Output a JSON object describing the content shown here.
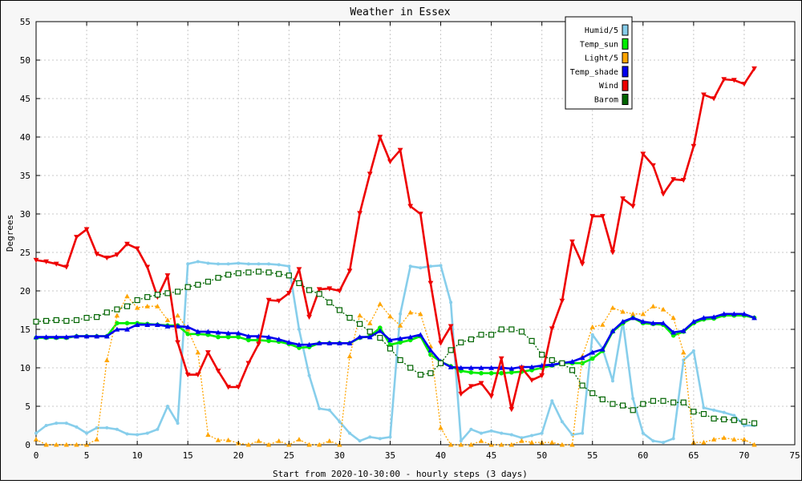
{
  "chart_data": {
    "type": "line",
    "title": "Weather in Essex",
    "xlabel": "Start from 2020-10-30:00 - hourly steps (3 days)",
    "ylabel": "Degrees",
    "xlim": [
      0,
      75
    ],
    "ylim": [
      0,
      55
    ],
    "xticks": [
      0,
      5,
      10,
      15,
      20,
      25,
      30,
      35,
      40,
      45,
      50,
      55,
      60,
      65,
      70,
      75
    ],
    "yticks": [
      0,
      5,
      10,
      15,
      20,
      25,
      30,
      35,
      40,
      45,
      50,
      55
    ],
    "grid": true,
    "legend_position": "top-right",
    "series": [
      {
        "name": "Humid/5",
        "color": "#87ceeb",
        "style": "thick-solid",
        "marker": "circle-small",
        "values": [
          1.5,
          2.5,
          2.8,
          2.8,
          2.3,
          1.5,
          2.2,
          2.2,
          2.0,
          1.4,
          1.3,
          1.5,
          2.0,
          5.0,
          2.8,
          23.5,
          23.8,
          23.6,
          23.5,
          23.5,
          23.6,
          23.5,
          23.5,
          23.5,
          23.4,
          23.2,
          15.0,
          9.0,
          4.7,
          4.5,
          3.0,
          1.5,
          0.5,
          1.0,
          0.8,
          1.0,
          17.0,
          23.2,
          23.0,
          23.2,
          23.3,
          18.5,
          0.5,
          2.0,
          1.5,
          1.8,
          1.5,
          1.3,
          0.9,
          1.2,
          1.5,
          5.7,
          3.0,
          1.3,
          1.5,
          14.3,
          12.5,
          8.3,
          16.0,
          6.0,
          1.5,
          0.5,
          0.3,
          0.8,
          11.0,
          12.2,
          4.8,
          4.5,
          4.2,
          3.8,
          2.5,
          2.5
        ]
      },
      {
        "name": "Temp_sun",
        "color": "#00ee00",
        "style": "thick-solid",
        "marker": "circle",
        "values": [
          13.9,
          13.9,
          13.9,
          13.9,
          14.1,
          14.1,
          14.1,
          14.1,
          15.8,
          15.8,
          15.8,
          15.7,
          15.6,
          15.5,
          15.5,
          14.4,
          14.4,
          14.3,
          14.0,
          14.0,
          14.0,
          13.6,
          13.6,
          13.5,
          13.4,
          13.1,
          12.6,
          12.7,
          13.2,
          13.2,
          13.2,
          13.2,
          13.9,
          14.1,
          15.2,
          13.0,
          13.3,
          13.6,
          14.1,
          11.7,
          10.8,
          10.2,
          9.6,
          9.4,
          9.3,
          9.3,
          9.3,
          9.4,
          9.5,
          9.7,
          10.0,
          10.3,
          10.6,
          10.6,
          10.6,
          11.2,
          12.2,
          14.7,
          15.8,
          16.5,
          15.8,
          15.7,
          15.6,
          14.2,
          14.7,
          15.8,
          16.3,
          16.4,
          16.8,
          16.8,
          16.8,
          16.5
        ]
      },
      {
        "name": "Light/5",
        "color": "#ffa500",
        "style": "dotted",
        "marker": "triangle-up",
        "values": [
          0.7,
          0.0,
          0.0,
          0.0,
          0.0,
          0.0,
          0.7,
          11.0,
          16.8,
          19.3,
          17.8,
          18.0,
          18.0,
          16.2,
          16.8,
          15.0,
          12.0,
          1.3,
          0.6,
          0.6,
          0.2,
          0.0,
          0.5,
          0.0,
          0.5,
          0.0,
          0.7,
          0.0,
          0.0,
          0.5,
          0.0,
          11.5,
          16.8,
          15.8,
          18.3,
          16.7,
          15.5,
          17.2,
          17.0,
          12.8,
          2.2,
          0.0,
          0.0,
          0.0,
          0.5,
          0.0,
          0.0,
          0.0,
          0.5,
          0.3,
          0.3,
          0.3,
          0.0,
          0.0,
          11.5,
          15.3,
          15.6,
          17.8,
          17.3,
          17.0,
          17.0,
          18.0,
          17.6,
          16.5,
          12.0,
          0.3,
          0.3,
          0.7,
          0.9,
          0.7,
          0.7,
          0.0
        ]
      },
      {
        "name": "Temp_shade",
        "color": "#0000ee",
        "style": "thick-solid",
        "marker": "triangle-up",
        "values": [
          14.0,
          14.0,
          14.0,
          14.0,
          14.1,
          14.1,
          14.1,
          14.1,
          15.0,
          15.0,
          15.6,
          15.6,
          15.6,
          15.4,
          15.4,
          15.3,
          14.7,
          14.7,
          14.6,
          14.5,
          14.5,
          14.1,
          14.1,
          14.0,
          13.7,
          13.3,
          13.0,
          13.0,
          13.2,
          13.2,
          13.2,
          13.2,
          14.0,
          14.0,
          14.8,
          13.6,
          13.8,
          14.0,
          14.3,
          12.3,
          10.8,
          10.1,
          10.0,
          10.0,
          10.0,
          10.0,
          10.0,
          9.9,
          10.1,
          10.1,
          10.3,
          10.4,
          10.6,
          10.8,
          11.3,
          12.0,
          12.4,
          14.8,
          16.0,
          16.5,
          16.0,
          15.8,
          15.8,
          14.6,
          14.8,
          16.0,
          16.5,
          16.6,
          17.0,
          17.0,
          17.0,
          16.5
        ]
      },
      {
        "name": "Wind",
        "color": "#ee0000",
        "style": "thick-solid",
        "marker": "triangle-down",
        "values": [
          24.0,
          23.8,
          23.5,
          23.1,
          27.0,
          28.0,
          24.8,
          24.3,
          24.7,
          26.1,
          25.5,
          23.1,
          19.2,
          22.0,
          13.3,
          9.1,
          9.1,
          12.0,
          9.6,
          7.5,
          7.5,
          10.6,
          13.1,
          18.8,
          18.7,
          19.7,
          22.8,
          16.6,
          20.2,
          20.3,
          20.0,
          22.6,
          30.1,
          35.2,
          40.0,
          36.8,
          38.3,
          31.0,
          30.0,
          21.0,
          13.2,
          15.4,
          6.6,
          7.6,
          8.0,
          6.3,
          11.2,
          4.6,
          10.0,
          8.4,
          9.0,
          15.1,
          18.7,
          26.4,
          23.5,
          29.7,
          29.7,
          25.0,
          32.0,
          31.0,
          37.8,
          36.3,
          32.6,
          34.5,
          34.4,
          38.8,
          45.5,
          45.0,
          47.5,
          47.4,
          46.9,
          48.9
        ]
      },
      {
        "name": "Barom",
        "color": "#006400",
        "style": "dotted",
        "marker": "square-open",
        "values": [
          16.0,
          16.1,
          16.2,
          16.1,
          16.2,
          16.5,
          16.6,
          17.2,
          17.6,
          18.0,
          18.8,
          19.2,
          19.5,
          19.7,
          19.9,
          20.5,
          20.8,
          21.2,
          21.7,
          22.1,
          22.3,
          22.4,
          22.5,
          22.4,
          22.2,
          22.0,
          21.0,
          20.1,
          19.6,
          18.5,
          17.5,
          16.5,
          15.7,
          14.7,
          13.9,
          12.5,
          11.0,
          10.0,
          9.1,
          9.3,
          10.6,
          12.3,
          13.3,
          13.7,
          14.3,
          14.3,
          15.0,
          15.0,
          14.7,
          13.5,
          11.7,
          11.0,
          10.6,
          9.7,
          7.7,
          6.7,
          5.9,
          5.3,
          5.1,
          4.5,
          5.3,
          5.7,
          5.7,
          5.5,
          5.5,
          4.3,
          4.0,
          3.4,
          3.3,
          3.2,
          3.0,
          2.8
        ]
      }
    ]
  }
}
